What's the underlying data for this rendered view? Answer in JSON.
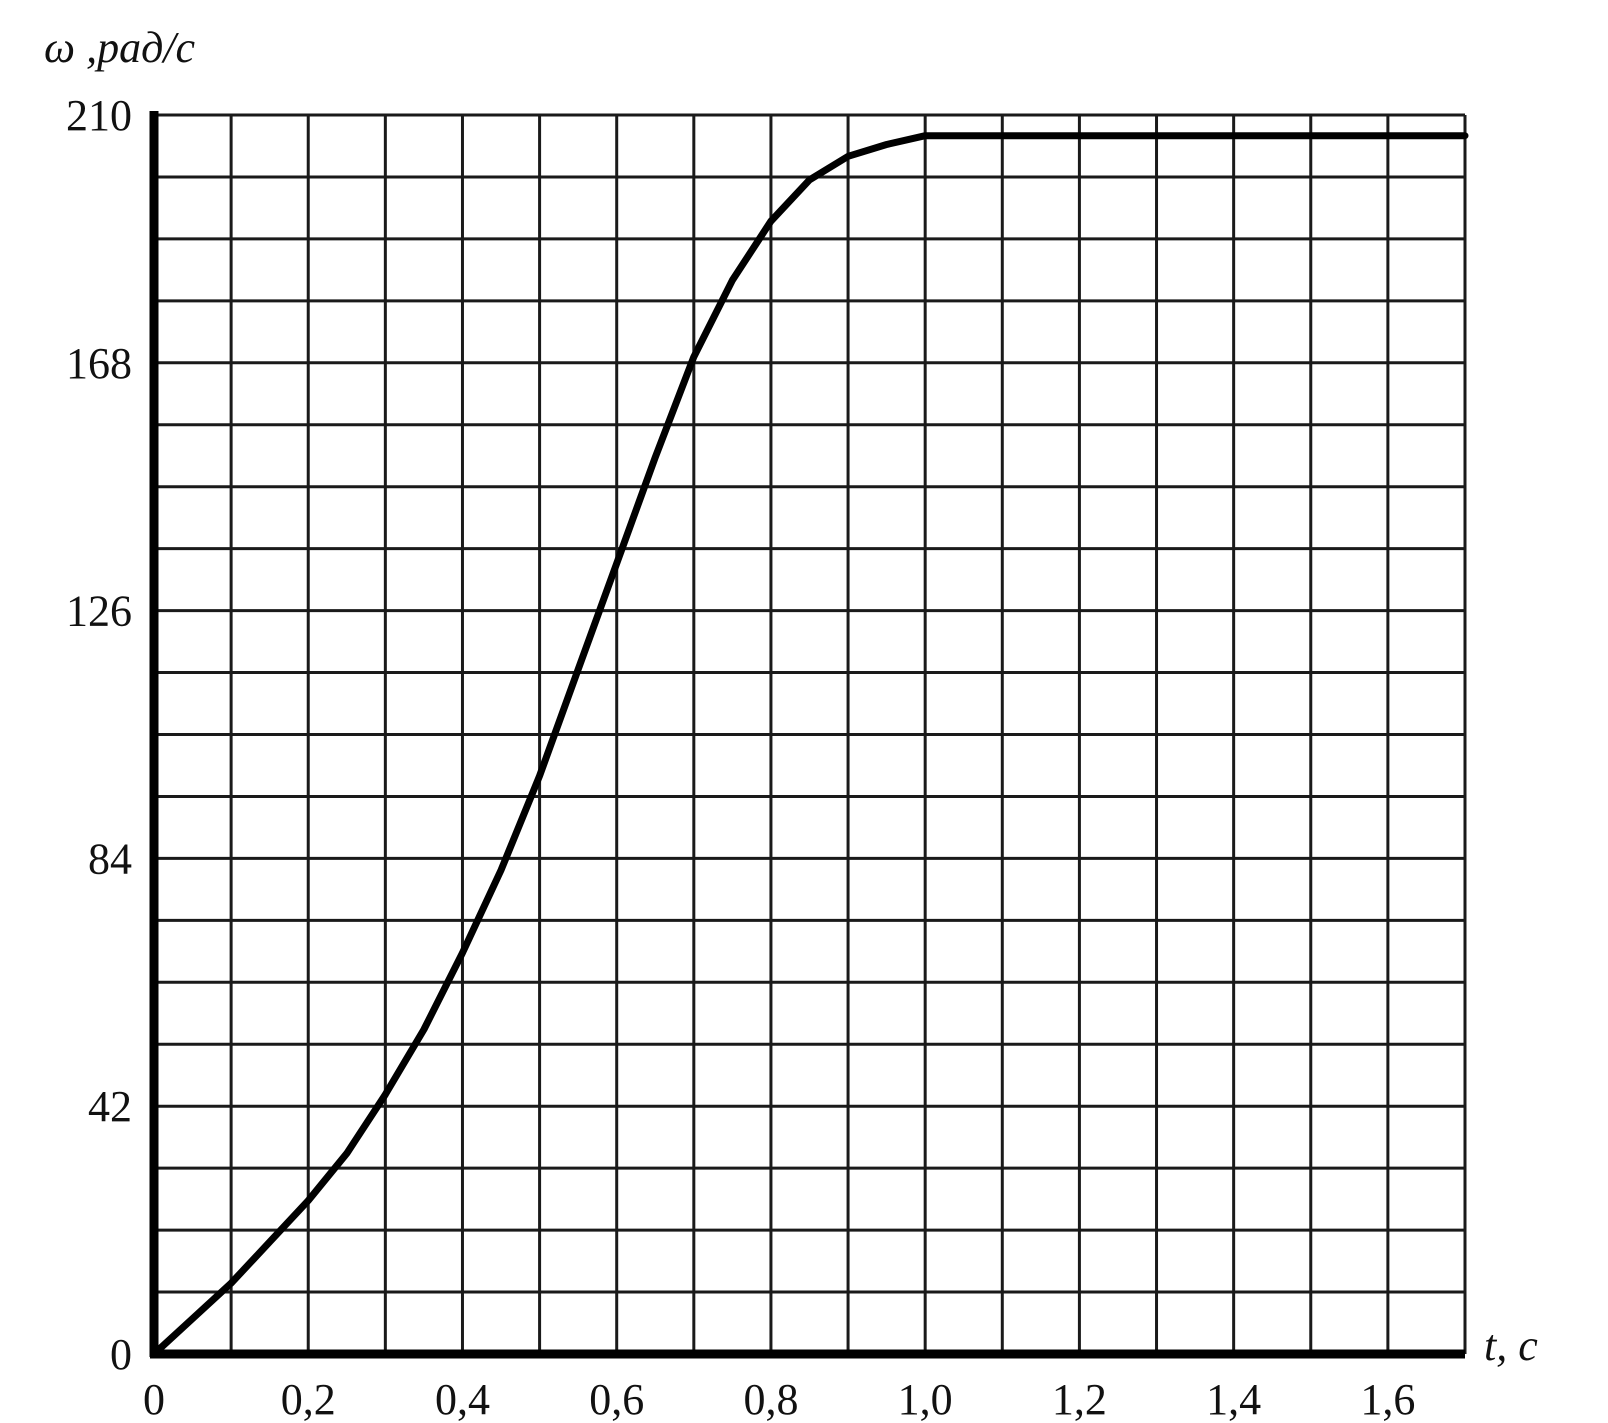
{
  "chart_data": {
    "type": "line",
    "title": "",
    "ylabel": "ω ,рад/с",
    "xlabel": "t, c",
    "xlim": [
      0,
      1.7
    ],
    "ylim": [
      0,
      210
    ],
    "grid": true,
    "x_ticks": [
      {
        "value": 0,
        "label": "0"
      },
      {
        "value": 0.2,
        "label": "0,2"
      },
      {
        "value": 0.4,
        "label": "0,4"
      },
      {
        "value": 0.6,
        "label": "0,6"
      },
      {
        "value": 0.8,
        "label": "0,8"
      },
      {
        "value": 1.0,
        "label": "1,0"
      },
      {
        "value": 1.2,
        "label": "1,2"
      },
      {
        "value": 1.4,
        "label": "1,4"
      },
      {
        "value": 1.6,
        "label": "1,6"
      }
    ],
    "y_ticks": [
      {
        "value": 0,
        "label": "0"
      },
      {
        "value": 42,
        "label": "42"
      },
      {
        "value": 84,
        "label": "84"
      },
      {
        "value": 126,
        "label": "126"
      },
      {
        "value": 168,
        "label": "168"
      },
      {
        "value": 210,
        "label": "210"
      }
    ],
    "series": [
      {
        "x": [
          0,
          0.05,
          0.1,
          0.15,
          0.2,
          0.25,
          0.3,
          0.35,
          0.4,
          0.45,
          0.5,
          0.55,
          0.6,
          0.65,
          0.7,
          0.75,
          0.8,
          0.85,
          0.9,
          0.95,
          1.0,
          1.05,
          1.1,
          1.2,
          1.3,
          1.4,
          1.5,
          1.6,
          1.7
        ],
        "y": [
          0,
          6,
          12,
          19,
          26,
          34,
          44,
          55,
          68,
          82,
          98,
          116,
          134,
          152,
          169,
          182,
          192,
          199,
          203,
          205,
          206.5,
          206.5,
          206.5,
          206.5,
          206.5,
          206.5,
          206.5,
          206.5,
          206.5
        ]
      }
    ]
  }
}
